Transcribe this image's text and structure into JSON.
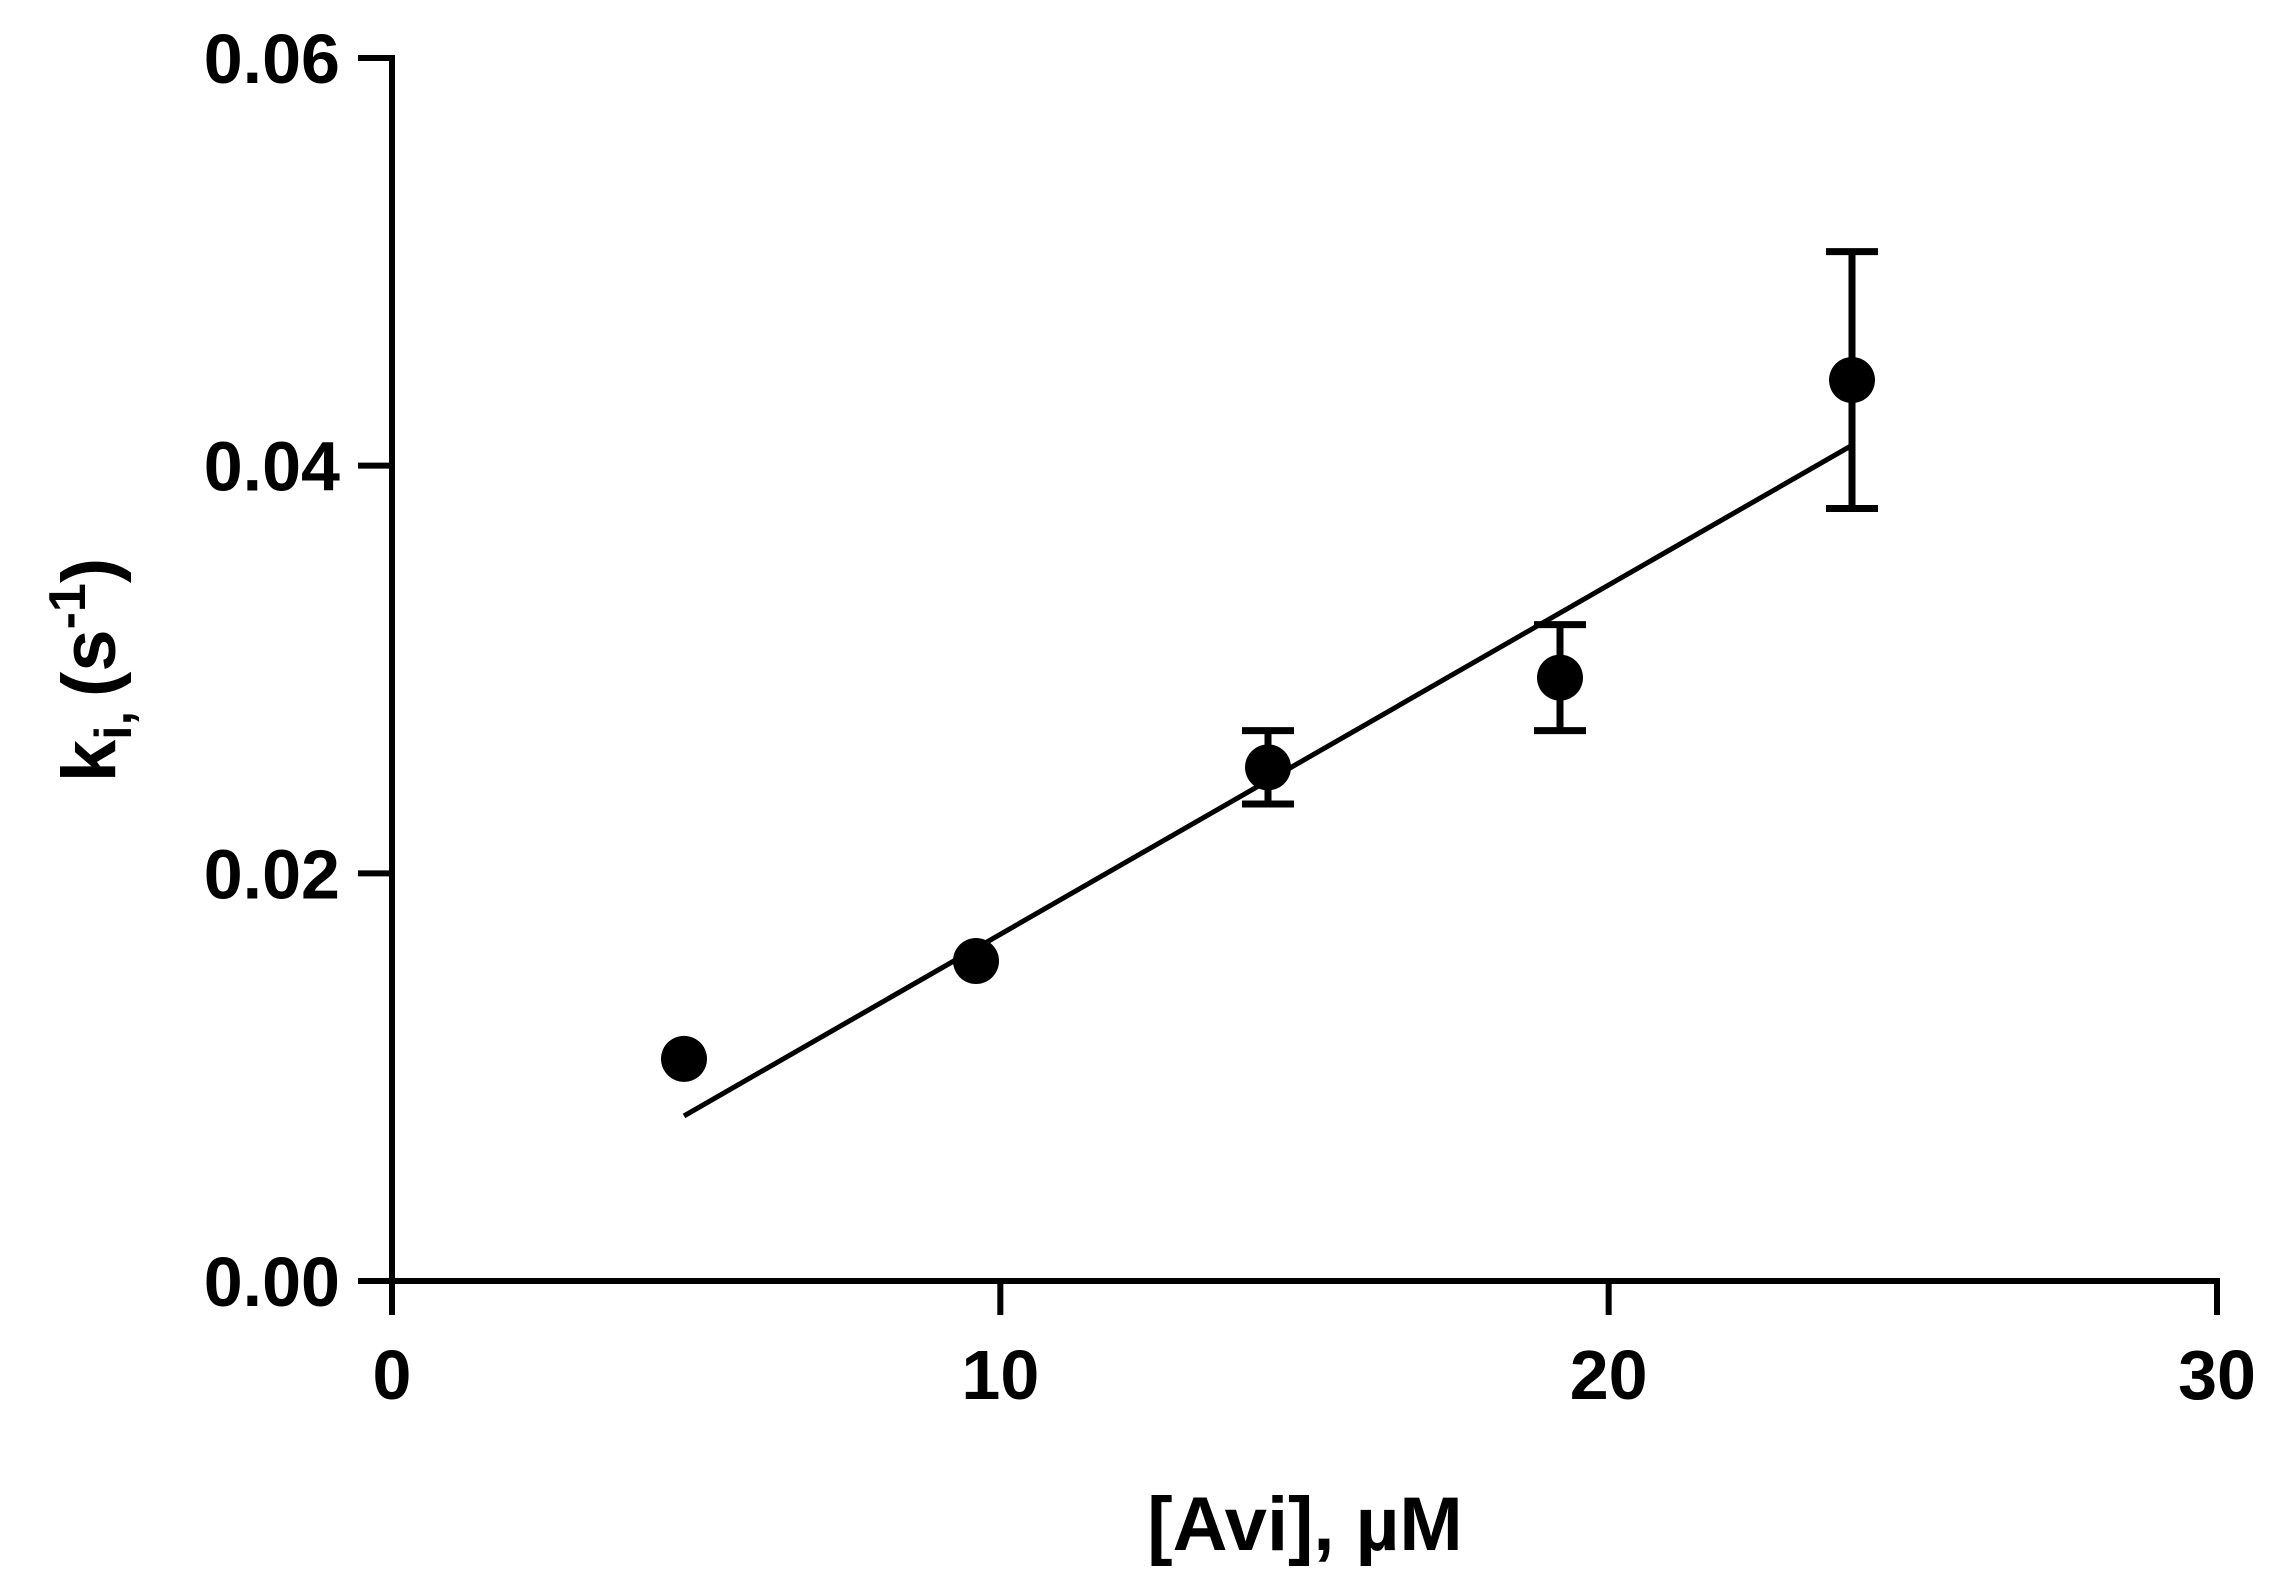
{
  "chart_data": {
    "type": "scatter",
    "title": "",
    "xlabel": "[Avi], µM",
    "ylabel": {
      "base": "k",
      "subscript": "i,",
      "unit_open": "(s",
      "unit_sup": "-1",
      "unit_close": ")"
    },
    "xlim": [
      0,
      30
    ],
    "ylim": [
      0,
      0.06
    ],
    "x_ticks": [
      "0",
      "10",
      "20",
      "30"
    ],
    "y_ticks": [
      "0.00",
      "0.02",
      "0.04",
      "0.06"
    ],
    "grid": false,
    "legend": "none",
    "series": [
      {
        "points": [
          {
            "x": 4.8,
            "y": 0.0109,
            "err": 0
          },
          {
            "x": 9.6,
            "y": 0.0157,
            "err": 0
          },
          {
            "x": 14.4,
            "y": 0.0252,
            "err": 0.0018
          },
          {
            "x": 19.2,
            "y": 0.0296,
            "err": 0.0026
          },
          {
            "x": 24.0,
            "y": 0.0442,
            "err": 0.0063
          }
        ]
      }
    ],
    "fit_line": {
      "x": [
        4.8,
        24.0
      ],
      "y": [
        0.0081,
        0.041
      ]
    },
    "colors": {
      "marks": "#000000",
      "background": "#ffffff"
    }
  }
}
